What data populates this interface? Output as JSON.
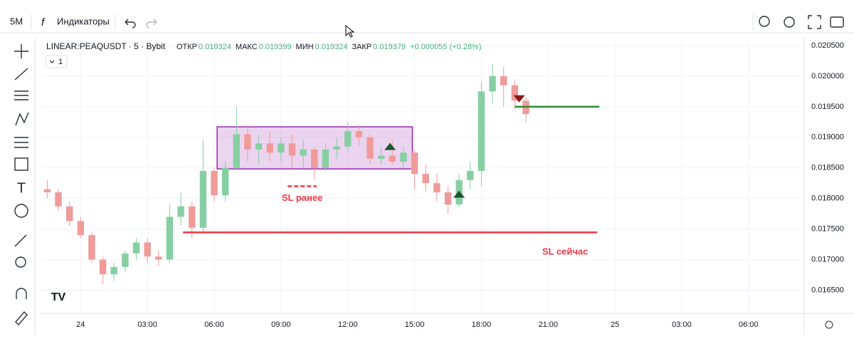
{
  "ui": {
    "interval": "5M",
    "indicators": "Индикаторы",
    "pane_count": 1
  },
  "chart_data": {
    "type": "candlestick",
    "title": "LINEAR:PEAQUSDT · 5 · Bybit",
    "ohlc_header": [
      {
        "label": "ОТКР",
        "value": 0.019324
      },
      {
        "label": "МАКС",
        "value": 0.019399
      },
      {
        "label": "МИН",
        "value": 0.019324
      },
      {
        "label": "ЗАКР",
        "value": 0.019379
      }
    ],
    "change": "+0.000055 (+0.28%)",
    "up_color": "#86cfa3",
    "down_color": "#f09a9a",
    "grid": true,
    "xlim": [
      -1.8,
      32.5
    ],
    "xticks": [
      {
        "value": 0,
        "label": "24"
      },
      {
        "value": 3,
        "label": "03:00"
      },
      {
        "value": 6,
        "label": "06:00"
      },
      {
        "value": 9,
        "label": "09:00"
      },
      {
        "value": 12,
        "label": "12:00"
      },
      {
        "value": 15,
        "label": "15:00"
      },
      {
        "value": 18,
        "label": "18:00"
      },
      {
        "value": 21,
        "label": "21:00"
      },
      {
        "value": 24,
        "label": "25"
      },
      {
        "value": 27,
        "label": "03:00"
      },
      {
        "value": 30,
        "label": "06:00"
      }
    ],
    "ylim": [
      0.01612,
      0.02064
    ],
    "yticks": [
      {
        "value": 0.0165,
        "label": "0.016500"
      },
      {
        "value": 0.017,
        "label": "0.017000"
      },
      {
        "value": 0.0175,
        "label": "0.017500"
      },
      {
        "value": 0.018,
        "label": "0.018000"
      },
      {
        "value": 0.0185,
        "label": "0.018500"
      },
      {
        "value": 0.019,
        "label": "0.019000"
      },
      {
        "value": 0.0195,
        "label": "0.019500"
      },
      {
        "value": 0.02,
        "label": "0.020000"
      },
      {
        "value": 0.0205,
        "label": "0.020500"
      }
    ],
    "x": [
      -1.5,
      -1.0,
      -0.5,
      0,
      0.5,
      1.0,
      1.5,
      2.0,
      2.5,
      3.0,
      3.5,
      4.0,
      4.5,
      5.0,
      5.5,
      6.0,
      6.5,
      7.0,
      7.5,
      8.0,
      8.5,
      9.0,
      9.5,
      10.0,
      10.5,
      11.0,
      11.5,
      12.0,
      12.5,
      13.0,
      13.5,
      14.0,
      14.5,
      15.0,
      15.5,
      16.0,
      16.5,
      17.0,
      17.5,
      18.0,
      18.5,
      19.0,
      19.5,
      20.0
    ],
    "open": [
      0.01815,
      0.0181,
      0.01787,
      0.01763,
      0.0174,
      0.017,
      0.01676,
      0.01688,
      0.0171,
      0.01728,
      0.01705,
      0.017,
      0.0177,
      0.01787,
      0.01752,
      0.01845,
      0.01805,
      0.0185,
      0.01905,
      0.0188,
      0.0189,
      0.01875,
      0.0189,
      0.0187,
      0.0188,
      0.0185,
      0.0188,
      0.01885,
      0.0191,
      0.019,
      0.01865,
      0.0187,
      0.0186,
      0.01875,
      0.0184,
      0.01825,
      0.0181,
      0.0179,
      0.0183,
      0.01845,
      0.01975,
      0.02,
      0.01985,
      0.0196
    ],
    "high": [
      0.0183,
      0.01815,
      0.01795,
      0.0177,
      0.01745,
      0.01705,
      0.01695,
      0.01715,
      0.01735,
      0.01735,
      0.01715,
      0.0179,
      0.0181,
      0.01795,
      0.01895,
      0.0185,
      0.0186,
      0.0195,
      0.0192,
      0.01905,
      0.0191,
      0.019,
      0.01905,
      0.01895,
      0.01885,
      0.0189,
      0.019,
      0.01925,
      0.0192,
      0.01905,
      0.01885,
      0.01895,
      0.01885,
      0.0188,
      0.01855,
      0.0184,
      0.0182,
      0.0184,
      0.0186,
      0.0199,
      0.0202,
      0.02015,
      0.01995,
      0.01965
    ],
    "low": [
      0.018,
      0.0178,
      0.01755,
      0.01735,
      0.01695,
      0.0166,
      0.01665,
      0.0168,
      0.017,
      0.01695,
      0.0169,
      0.01695,
      0.01755,
      0.01735,
      0.01745,
      0.01795,
      0.01795,
      0.01845,
      0.0186,
      0.01855,
      0.0186,
      0.0186,
      0.0185,
      0.0185,
      0.0183,
      0.01845,
      0.01865,
      0.01875,
      0.01885,
      0.01855,
      0.01855,
      0.01855,
      0.0185,
      0.01815,
      0.0181,
      0.01795,
      0.01775,
      0.01785,
      0.01815,
      0.0182,
      0.01955,
      0.0195,
      0.01945,
      0.01925
    ],
    "close": [
      0.0181,
      0.01787,
      0.01763,
      0.0174,
      0.017,
      0.01676,
      0.01688,
      0.0171,
      0.01728,
      0.01705,
      0.017,
      0.0177,
      0.01787,
      0.01752,
      0.01845,
      0.01805,
      0.0185,
      0.01905,
      0.0188,
      0.0189,
      0.01875,
      0.0189,
      0.0187,
      0.0188,
      0.0185,
      0.0188,
      0.01885,
      0.0191,
      0.019,
      0.01865,
      0.0187,
      0.0186,
      0.01875,
      0.0184,
      0.01825,
      0.0181,
      0.0179,
      0.0183,
      0.01845,
      0.01975,
      0.02,
      0.01985,
      0.0196,
      0.01938
    ],
    "box": {
      "x": [
        6.13,
        14.9
      ],
      "y": [
        0.018483,
        0.019171
      ],
      "color": "#9c27b0"
    },
    "lines": [
      {
        "x": [
          19.5,
          23.3
        ],
        "y": 0.0195,
        "color": "#2e8b2e"
      },
      {
        "x": [
          4.6,
          23.2
        ],
        "y": 0.017445,
        "color": "#f23645",
        "label": "SL сейчас"
      },
      {
        "x": [
          9.3,
          10.6
        ],
        "y": 0.0182,
        "color": "#f23645",
        "dashed": true,
        "label": "SL ранее"
      }
    ],
    "markers": [
      {
        "x": 13.9,
        "y": 0.01885,
        "dir": "up",
        "color": "#1e5631"
      },
      {
        "x": 17.0,
        "y": 0.01807,
        "dir": "up",
        "color": "#1e5631"
      },
      {
        "x": 19.7,
        "y": 0.01963,
        "dir": "down",
        "color": "#8b1a1a"
      }
    ]
  }
}
